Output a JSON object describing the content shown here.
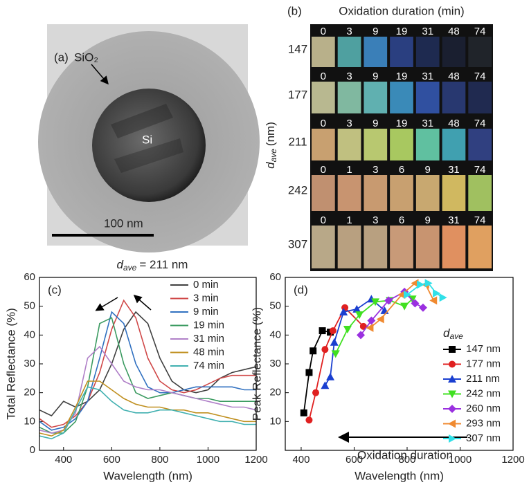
{
  "tem": {
    "label": "(a)",
    "shell": "SiO₂",
    "core": "Si",
    "scale_bar": "100 nm"
  },
  "photo": {
    "label": "(b)",
    "title": "Oxidation duration (min)",
    "y_label": {
      "symbol": "d",
      "subscript": "ave",
      "unit": "(nm)"
    },
    "rows": [
      {
        "d": 147,
        "durations": [
          0,
          3,
          9,
          19,
          31,
          48,
          74
        ],
        "colors": [
          "#b8b08a",
          "#4fa0a0",
          "#3a7fb8",
          "#2a3f80",
          "#1e2a50",
          "#1a1f30",
          "#20242a"
        ]
      },
      {
        "d": 177,
        "durations": [
          0,
          3,
          9,
          19,
          31,
          48,
          74
        ],
        "colors": [
          "#b8b890",
          "#80b8a0",
          "#60b0b0",
          "#3a8ab8",
          "#3050a0",
          "#283870",
          "#202a50"
        ]
      },
      {
        "d": 211,
        "durations": [
          0,
          3,
          9,
          19,
          31,
          48,
          74
        ],
        "colors": [
          "#c8a070",
          "#c0c080",
          "#b8c870",
          "#a8c860",
          "#60c0a0",
          "#40a0b0",
          "#304080"
        ]
      },
      {
        "d": 242,
        "durations": [
          0,
          1,
          3,
          6,
          9,
          31,
          74
        ],
        "colors": [
          "#c09070",
          "#c89470",
          "#c89a70",
          "#c8a070",
          "#c8a870",
          "#d0b860",
          "#a0c060"
        ]
      },
      {
        "d": 307,
        "durations": [
          0,
          1,
          3,
          6,
          9,
          31,
          74
        ],
        "colors": [
          "#b8a888",
          "#b8a080",
          "#b8a080",
          "#c89a78",
          "#c89470",
          "#e09060",
          "#e0a060"
        ]
      }
    ]
  },
  "chart_data": [
    {
      "type": "line",
      "panel_label": "(c)",
      "title": {
        "symbol": "d",
        "subscript": "ave",
        "text": "= 211 nm"
      },
      "x_label": "Wavelength (nm)",
      "y_label": "Total Reflectance (%)",
      "xlim": [
        300,
        1200
      ],
      "xticks": [
        400,
        600,
        800,
        1000,
        1200
      ],
      "ylim": [
        0,
        60
      ],
      "yticks": [
        0,
        10,
        20,
        30,
        40,
        50,
        60
      ],
      "x": [
        300,
        350,
        400,
        450,
        500,
        550,
        600,
        650,
        700,
        750,
        800,
        850,
        900,
        950,
        1000,
        1050,
        1100,
        1150,
        1200
      ],
      "series": [
        {
          "name": "0 min",
          "color": "#404040",
          "values": [
            14,
            12,
            17,
            15,
            17,
            21,
            30,
            42,
            48,
            44,
            32,
            24,
            21,
            20,
            21,
            25,
            27,
            28,
            29
          ]
        },
        {
          "name": "3 min",
          "color": "#d04848",
          "values": [
            11,
            8,
            9,
            12,
            17,
            27,
            42,
            52,
            46,
            32,
            24,
            21,
            20,
            21,
            23,
            25,
            26,
            26,
            26
          ]
        },
        {
          "name": "9 min",
          "color": "#3070c0",
          "values": [
            10,
            7,
            8,
            11,
            17,
            32,
            48,
            44,
            30,
            22,
            20,
            20,
            21,
            22,
            22,
            22,
            22,
            21,
            21
          ]
        },
        {
          "name": "19 min",
          "color": "#3a9a60",
          "values": [
            8,
            6,
            6,
            10,
            22,
            44,
            46,
            30,
            20,
            18,
            19,
            20,
            19,
            18,
            18,
            17,
            17,
            17,
            17
          ]
        },
        {
          "name": "31 min",
          "color": "#b080c8",
          "values": [
            7,
            6,
            7,
            13,
            32,
            36,
            30,
            24,
            22,
            21,
            21,
            20,
            19,
            18,
            17,
            16,
            15,
            15,
            14
          ]
        },
        {
          "name": "48 min",
          "color": "#c09020",
          "values": [
            6,
            5,
            7,
            15,
            24,
            24,
            21,
            18,
            16,
            15,
            15,
            14,
            14,
            13,
            13,
            12,
            11,
            10,
            10
          ]
        },
        {
          "name": "74 min",
          "color": "#40b0b0",
          "values": [
            5,
            4,
            6,
            14,
            22,
            21,
            17,
            14,
            13,
            13,
            14,
            14,
            13,
            12,
            11,
            10,
            10,
            9,
            9
          ]
        }
      ]
    },
    {
      "type": "line",
      "panel_label": "(d)",
      "legend_title": {
        "symbol": "d",
        "subscript": "ave"
      },
      "annotation": "Oxidation duration",
      "x_label": "Wavelength (nm)",
      "y_label": "Peak Reflectance (%)",
      "xlim": [
        340,
        1200
      ],
      "xticks": [
        400,
        600,
        800,
        1000,
        1200
      ],
      "ylim": [
        0,
        60
      ],
      "yticks": [
        10,
        20,
        30,
        40,
        50,
        60
      ],
      "series": [
        {
          "name": "147 nm",
          "color": "#000000",
          "marker": "square",
          "x": [
            410,
            430,
            445,
            480,
            510
          ],
          "values": [
            13,
            27,
            34.5,
            41.5,
            41
          ]
        },
        {
          "name": "177 nm",
          "color": "#e02020",
          "marker": "circle",
          "x": [
            430,
            455,
            490,
            520,
            565,
            635
          ],
          "values": [
            10.5,
            20,
            35,
            41.5,
            49.5,
            43
          ]
        },
        {
          "name": "211 nm",
          "color": "#1a3fd0",
          "marker": "triangle-up",
          "x": [
            490,
            510,
            525,
            560,
            610,
            665,
            715
          ],
          "values": [
            22.5,
            25.5,
            37.5,
            48,
            49,
            52.5,
            48.5
          ]
        },
        {
          "name": "242 nm",
          "color": "#40e020",
          "marker": "triangle-down",
          "x": [
            530,
            575,
            620,
            680,
            735,
            790,
            820
          ],
          "values": [
            33.5,
            42,
            47,
            51.5,
            52,
            50,
            52.5
          ]
        },
        {
          "name": "260 nm",
          "color": "#9a30e0",
          "marker": "diamond",
          "x": [
            625,
            665,
            730,
            790,
            830,
            860
          ],
          "values": [
            40,
            45,
            52,
            55,
            51,
            49.5
          ]
        },
        {
          "name": "293 nm",
          "color": "#f08a30",
          "marker": "triangle-left",
          "x": [
            660,
            700,
            780,
            830,
            870,
            900
          ],
          "values": [
            42.5,
            45.5,
            54,
            58,
            57.5,
            52
          ]
        },
        {
          "name": "307 nm",
          "color": "#30e0e8",
          "marker": "triangle-right",
          "x": [
            800,
            850,
            880,
            910,
            935
          ],
          "values": [
            54,
            57.5,
            58,
            54.5,
            53
          ]
        }
      ]
    }
  ]
}
